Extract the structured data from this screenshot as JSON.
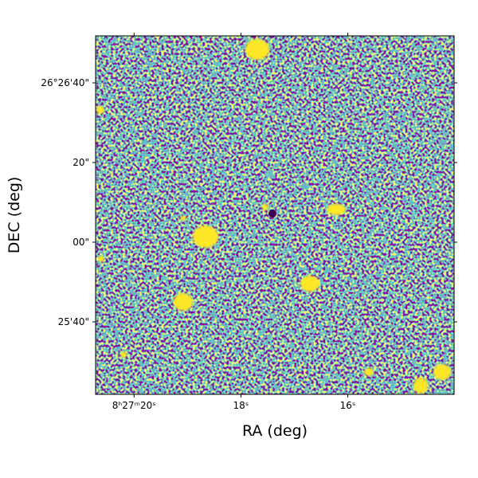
{
  "chart_data": {
    "type": "image",
    "xlabel": "RA (deg)",
    "ylabel": "DEC (deg)",
    "xlim": [
      20.72,
      14.01
    ],
    "xticks": [
      {
        "value": 20,
        "label": "8ʰ27ᵐ20ˢ"
      },
      {
        "value": 18,
        "label": "18ˢ"
      },
      {
        "value": 16,
        "label": "16ˢ"
      }
    ],
    "ylim": [
      -38.2,
      51.8
    ],
    "yticks": [
      {
        "value": 40,
        "label": "26°26'40\""
      },
      {
        "value": 20,
        "label": "20\""
      },
      {
        "value": 0,
        "label": "00\""
      },
      {
        "value": -20,
        "label": "25'40\""
      }
    ]
  }
}
